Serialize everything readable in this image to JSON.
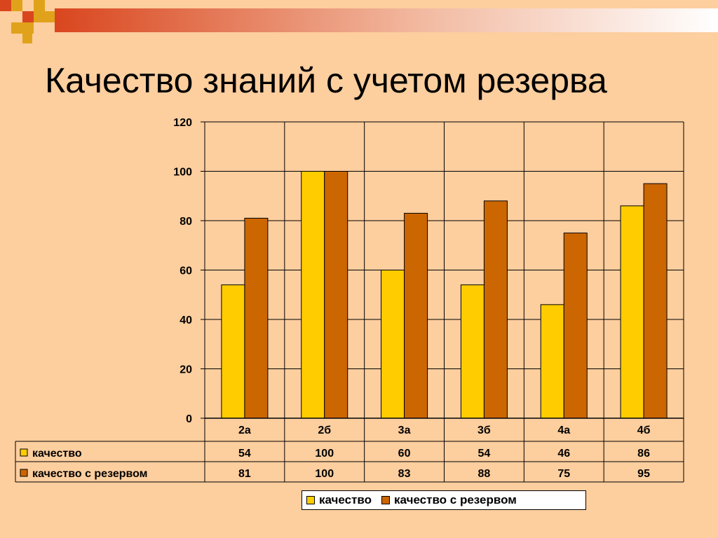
{
  "title": "Качество знаний с учетом резерва",
  "colors": {
    "background": "#FDCE9E",
    "series1": "#FFCC00",
    "series2": "#CC6600",
    "deco_red": "#D9461E",
    "deco_gold": "#E0A21A"
  },
  "chart_data": {
    "type": "bar",
    "categories": [
      "2а",
      "2б",
      "3а",
      "3б",
      "4а",
      "4б"
    ],
    "series": [
      {
        "name": "качество",
        "values": [
          54,
          100,
          60,
          54,
          46,
          86
        ]
      },
      {
        "name": "качество с резервом",
        "values": [
          81,
          100,
          83,
          88,
          75,
          95
        ]
      }
    ],
    "ylim": [
      0,
      120
    ],
    "yticks": [
      "0",
      "20",
      "40",
      "60",
      "80",
      "100",
      "120"
    ],
    "grid": true,
    "data_table": true,
    "legend_position": "bottom"
  }
}
